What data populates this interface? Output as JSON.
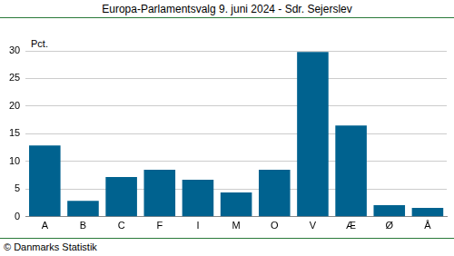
{
  "chart_data": {
    "type": "bar",
    "title": "Europa-Parlamentsvalg 9. juni 2024 - Sdr. Sejerslev",
    "y_label": "Pct.",
    "source": "© Danmarks Statistik",
    "categories": [
      "A",
      "B",
      "C",
      "F",
      "I",
      "M",
      "O",
      "V",
      "Æ",
      "Ø",
      "Å"
    ],
    "values": [
      12.9,
      2.9,
      7.2,
      8.5,
      6.7,
      4.4,
      8.5,
      29.8,
      16.5,
      2.1,
      1.6
    ],
    "color": "#00628f",
    "ylim": [
      0,
      30
    ],
    "yticks": [
      0,
      5,
      10,
      15,
      20,
      25,
      30
    ],
    "grid": true
  }
}
